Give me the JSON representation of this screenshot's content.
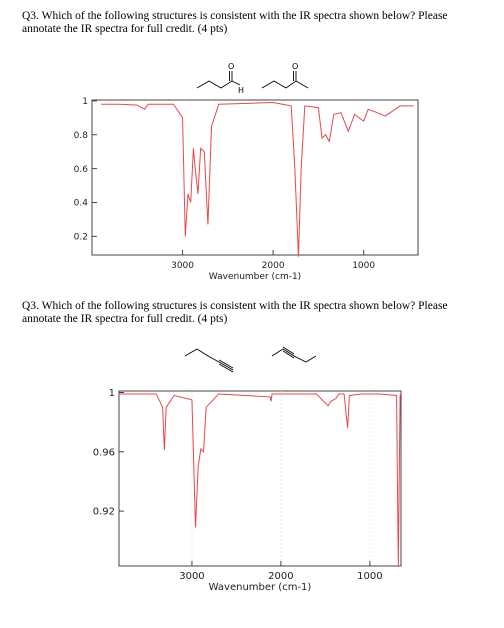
{
  "questions": [
    {
      "text": "Q3. Which of the following structures is consistent with the IR spectra shown below? Please annotate the IR spectra for full credit. (4 pts)",
      "structure_labels": [
        "O",
        "H",
        "O"
      ]
    },
    {
      "text": "Q3. Which of the following structures is consistent with the IR spectra shown below? Please annotate the IR spectra for full credit. (4 pts)"
    }
  ],
  "chart_data": [
    {
      "type": "line",
      "xlabel": "Wavenumber (cm-1)",
      "color": "#e8484a",
      "x": [
        3900,
        3700,
        3500,
        3420,
        3380,
        3100,
        3000,
        2970,
        2940,
        2910,
        2880,
        2860,
        2830,
        2800,
        2760,
        2720,
        2680,
        2600,
        2000,
        1800,
        1760,
        1720,
        1690,
        1650,
        1500,
        1460,
        1420,
        1380,
        1330,
        1250,
        1170,
        1100,
        1000,
        950,
        850,
        760,
        600,
        450
      ],
      "values": [
        0.98,
        0.98,
        0.975,
        0.95,
        0.98,
        0.98,
        0.9,
        0.2,
        0.45,
        0.4,
        0.72,
        0.6,
        0.45,
        0.72,
        0.7,
        0.27,
        0.85,
        0.98,
        0.99,
        0.97,
        0.6,
        0.08,
        0.6,
        0.97,
        0.96,
        0.78,
        0.8,
        0.76,
        0.92,
        0.93,
        0.82,
        0.92,
        0.88,
        0.95,
        0.93,
        0.91,
        0.97,
        0.97
      ],
      "xlim": [
        4000,
        400
      ],
      "xticks": [
        3000,
        2000,
        1000
      ],
      "ylim": [
        0.09,
        1.005
      ],
      "yticks": [
        0.2,
        0.4,
        0.6,
        0.8,
        1
      ],
      "grid": false
    },
    {
      "type": "line",
      "xlabel": "Wavenumber (cm-1)",
      "color": "#e8484a",
      "x": [
        3820,
        3400,
        3330,
        3310,
        3290,
        3200,
        3000,
        2960,
        2930,
        2900,
        2870,
        2840,
        2700,
        2120,
        2110,
        2100,
        1900,
        1600,
        1470,
        1440,
        1380,
        1350,
        1290,
        1250,
        1230,
        1100,
        900,
        700,
        680,
        660,
        650
      ],
      "values": [
        0.999,
        0.999,
        0.99,
        0.961,
        0.99,
        0.998,
        0.995,
        0.909,
        0.95,
        0.962,
        0.96,
        0.99,
        0.999,
        0.997,
        0.994,
        0.999,
        0.999,
        0.999,
        0.991,
        0.994,
        0.996,
        0.999,
        0.999,
        0.976,
        0.998,
        0.999,
        0.999,
        0.998,
        0.883,
        0.998,
        0.999
      ],
      "xlim": [
        3820,
        650
      ],
      "xticks": [
        3000,
        2000,
        1000
      ],
      "ylim": [
        0.883,
        1.001
      ],
      "yticks": [
        0.92,
        0.96,
        1
      ],
      "grid": true
    }
  ]
}
